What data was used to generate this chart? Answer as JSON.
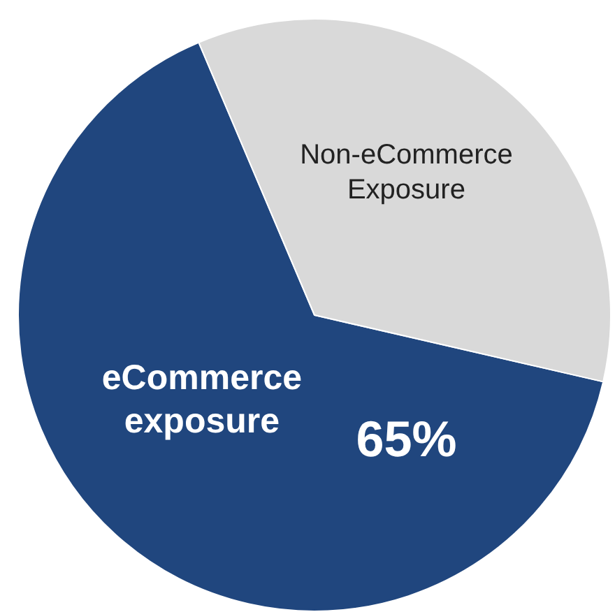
{
  "chart_data": {
    "type": "pie",
    "categories": [
      "eCommerce exposure",
      "Non-eCommerce Exposure"
    ],
    "values": [
      65,
      35
    ],
    "colors": [
      "#20467e",
      "#d9d9d9"
    ],
    "value_labels": [
      "65%",
      null
    ],
    "legend": false
  }
}
